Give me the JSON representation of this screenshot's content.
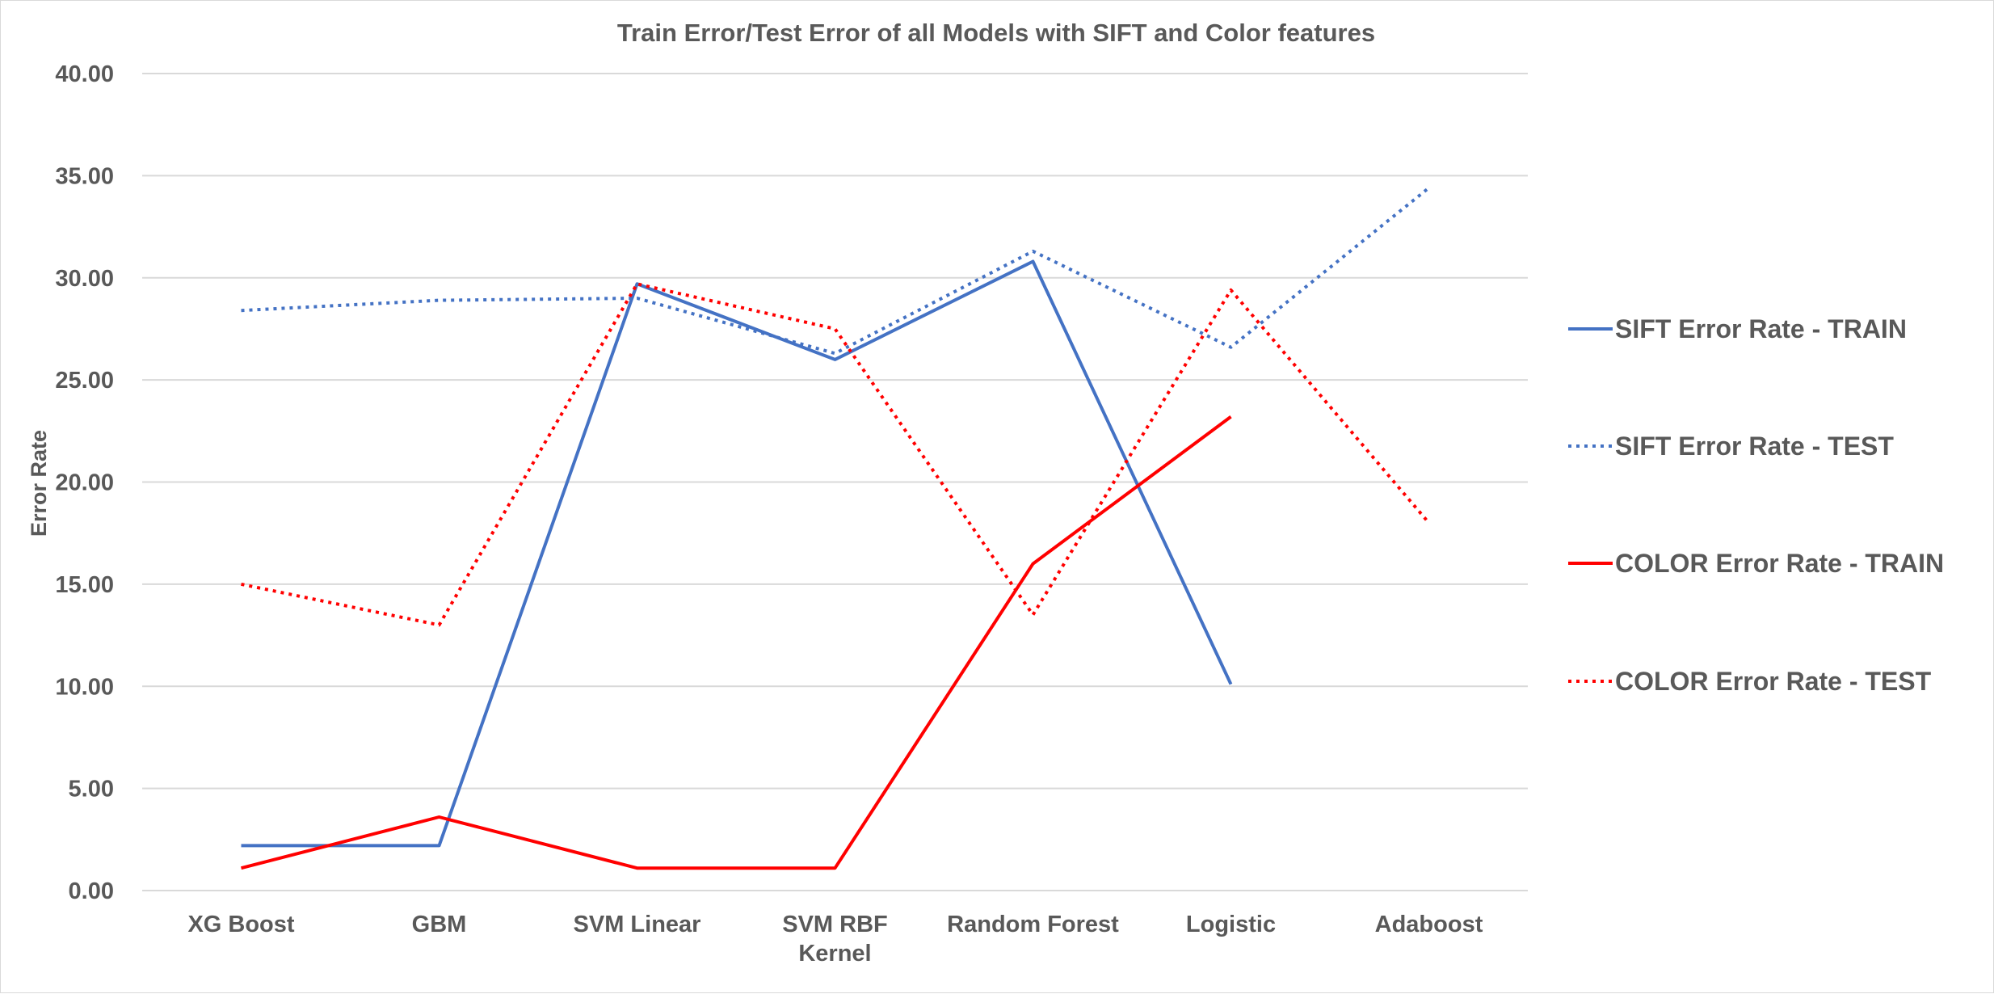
{
  "chart_data": {
    "type": "line",
    "title": "Train Error/Test Error of all Models with SIFT and Color features",
    "ylabel": "Error Rate",
    "xlabel": "",
    "ylim": [
      0,
      40
    ],
    "ytick_step": 5,
    "ytick_labels": [
      "0.00",
      "5.00",
      "10.00",
      "15.00",
      "20.00",
      "25.00",
      "30.00",
      "35.00",
      "40.00"
    ],
    "grid": true,
    "legend_position": "right",
    "categories": [
      [
        "XG Boost"
      ],
      [
        "GBM"
      ],
      [
        "SVM Linear"
      ],
      [
        "SVM RBF",
        "Kernel"
      ],
      [
        "Random Forest"
      ],
      [
        "Logistic"
      ],
      [
        "Adaboost"
      ]
    ],
    "series": [
      {
        "name": "SIFT Error Rate - TRAIN",
        "color": "#4472C4",
        "style": "solid",
        "values": [
          2.2,
          2.2,
          29.7,
          26.0,
          30.8,
          10.1,
          null
        ]
      },
      {
        "name": "SIFT Error Rate - TEST",
        "color": "#4472C4",
        "style": "dotted",
        "values": [
          28.4,
          28.9,
          29.0,
          26.3,
          31.3,
          26.6,
          34.4
        ]
      },
      {
        "name": "COLOR Error Rate - TRAIN",
        "color": "#FF0000",
        "style": "solid",
        "values": [
          1.1,
          3.6,
          1.1,
          1.1,
          16.0,
          23.2,
          null
        ]
      },
      {
        "name": "COLOR Error Rate - TEST",
        "color": "#FF0000",
        "style": "dotted",
        "values": [
          15.0,
          13.0,
          29.7,
          27.5,
          13.5,
          29.4,
          18.0
        ]
      }
    ]
  }
}
